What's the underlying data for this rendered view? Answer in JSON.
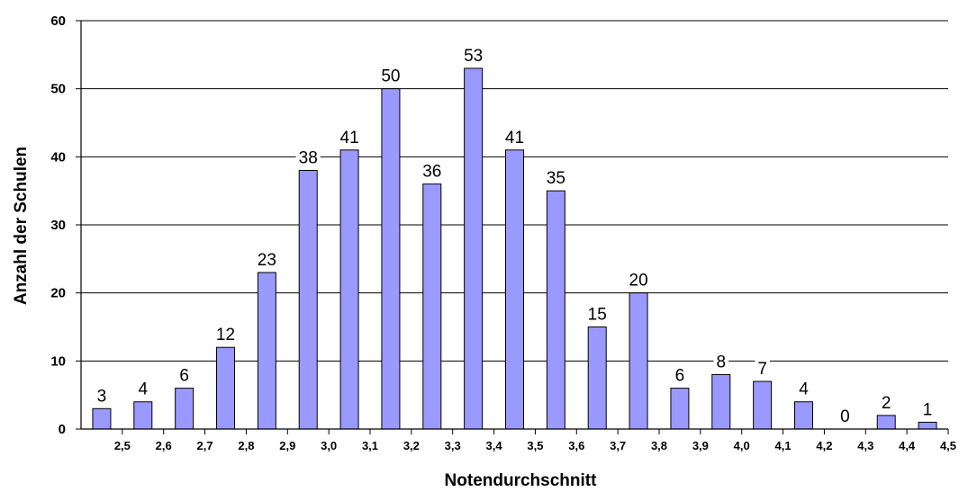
{
  "chart_data": {
    "type": "bar",
    "title": "",
    "xlabel": "Notendurchschnitt",
    "ylabel": "Anzahl der Schulen",
    "ylim": [
      0,
      60
    ],
    "y_ticks": [
      "0",
      "10",
      "20",
      "30",
      "40",
      "50",
      "60"
    ],
    "x_ticks": [
      "2,5",
      "2,6",
      "2,7",
      "2,8",
      "2,9",
      "3,0",
      "3,1",
      "3,2",
      "3,3",
      "3,4",
      "3,5",
      "3,6",
      "3,7",
      "3,8",
      "3,9",
      "4,0",
      "4,1",
      "4,2",
      "4,3",
      "4,4",
      "4,5"
    ],
    "x_range": [
      2.4,
      4.5
    ],
    "x": [
      2.45,
      2.55,
      2.65,
      2.75,
      2.85,
      2.95,
      3.05,
      3.15,
      3.25,
      3.35,
      3.45,
      3.55,
      3.65,
      3.75,
      3.85,
      3.95,
      4.05,
      4.15,
      4.25,
      4.35,
      4.45
    ],
    "values": [
      3,
      4,
      6,
      12,
      23,
      38,
      41,
      50,
      36,
      53,
      41,
      35,
      15,
      20,
      6,
      8,
      7,
      4,
      0,
      2,
      1
    ],
    "data_labels": [
      "3",
      "4",
      "6",
      "12",
      "23",
      "38",
      "41",
      "50",
      "36",
      "53",
      "41",
      "35",
      "15",
      "20",
      "6",
      "8",
      "7",
      "4",
      "0",
      "2",
      "1"
    ],
    "grid": true,
    "legend": "none",
    "colors": {
      "bar_fill": "#9999ff",
      "bar_stroke": "#000000",
      "grid": "#000000"
    }
  }
}
